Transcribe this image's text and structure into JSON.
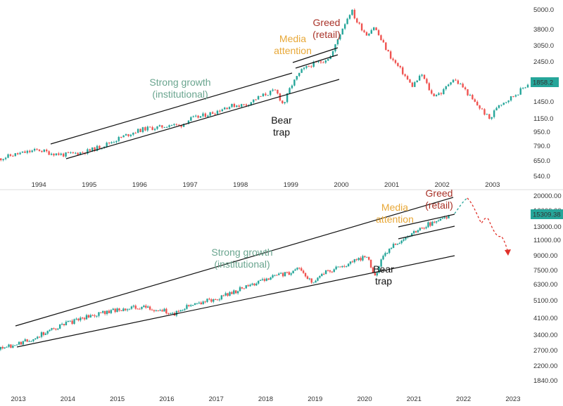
{
  "colors": {
    "up": "#26a69a",
    "down": "#ef5350",
    "strong_growth": "#6aa58f",
    "media": "#e8a838",
    "greed": "#a83228",
    "bear": "#111111",
    "price_tag_bg": "#26a69a",
    "forecast": "#26a69a",
    "forecast_down": "#e0312a"
  },
  "chart_data": [
    {
      "type": "candlestick",
      "x_ticks": [
        "1994",
        "1995",
        "1996",
        "1997",
        "1998",
        "1999",
        "2000",
        "2001",
        "2002",
        "2003"
      ],
      "y_ticks": [
        "5000.0",
        "3800.0",
        "3050.0",
        "2450.0",
        "1858.2",
        "1450.0",
        "1150.0",
        "950.0",
        "790.0",
        "650.0",
        "540.0"
      ],
      "scale": "log",
      "ylim": [
        540,
        5000
      ],
      "last_price": "1858.2",
      "annotations": {
        "strong_growth": [
          "Strong growth",
          "(institutional)"
        ],
        "media": [
          "Media",
          "attention"
        ],
        "greed": [
          "Greed",
          "(retail)"
        ],
        "bear": [
          "Bear",
          "trap"
        ]
      },
      "series": [
        {
          "x": [
            1993.2,
            1993.5,
            1993.8,
            1994.0,
            1994.2,
            1994.5,
            1994.8,
            1995.0,
            1995.3,
            1995.6,
            1995.9,
            1996.1,
            1996.4,
            1996.6,
            1996.8,
            1997.0,
            1997.2,
            1997.5,
            1997.7,
            1997.9,
            1998.1,
            1998.3,
            1998.5,
            1998.7,
            1998.85,
            1999.0,
            1999.2,
            1999.4,
            1999.6,
            1999.8,
            2000.0,
            2000.2,
            2000.3,
            2000.5,
            2000.65,
            2000.8,
            2001.0,
            2001.2,
            2001.4,
            2001.6,
            2001.8,
            2002.0,
            2002.2,
            2002.4,
            2002.6,
            2002.8,
            2002.95,
            2003.1,
            2003.3,
            2003.5,
            2003.7
          ],
          "y": [
            680,
            720,
            750,
            770,
            740,
            720,
            740,
            760,
            820,
            900,
            980,
            1020,
            1040,
            1080,
            1060,
            1160,
            1200,
            1280,
            1360,
            1400,
            1400,
            1520,
            1620,
            1700,
            1400,
            1800,
            2200,
            2400,
            2500,
            2700,
            3800,
            5000,
            4300,
            3600,
            4000,
            3300,
            2600,
            2200,
            1800,
            2100,
            1600,
            1650,
            2000,
            1800,
            1500,
            1300,
            1150,
            1400,
            1500,
            1650,
            1858
          ]
        }
      ]
    },
    {
      "type": "candlestick",
      "x_ticks": [
        "2013",
        "2014",
        "2015",
        "2016",
        "2017",
        "2018",
        "2019",
        "2020",
        "2021",
        "2022",
        "2023"
      ],
      "y_ticks": [
        "20000.00",
        "16000.00",
        "13000.00",
        "11000.00",
        "9000.00",
        "7500.00",
        "6300.00",
        "5100.00",
        "4100.00",
        "3400.00",
        "2700.00",
        "2200.00",
        "1840.00"
      ],
      "scale": "log",
      "ylim": [
        1840,
        20000
      ],
      "last_price": "15309.38",
      "annotations": {
        "strong_growth": [
          "Strong growth",
          "(institutional)"
        ],
        "media": [
          "Media",
          "attention"
        ],
        "greed": [
          "Greed",
          "(retail)"
        ],
        "bear": [
          "Bear",
          "trap"
        ]
      },
      "series": [
        {
          "x": [
            2012.6,
            2012.9,
            2013.2,
            2013.5,
            2013.8,
            2014.1,
            2014.4,
            2014.7,
            2015.0,
            2015.3,
            2015.6,
            2015.9,
            2016.1,
            2016.4,
            2016.7,
            2017.0,
            2017.3,
            2017.6,
            2017.9,
            2018.1,
            2018.4,
            2018.7,
            2018.95,
            2019.2,
            2019.5,
            2019.8,
            2020.05,
            2020.2,
            2020.35,
            2020.6,
            2020.9,
            2021.1,
            2021.4,
            2021.7
          ],
          "y": [
            2750,
            2900,
            3100,
            3400,
            3700,
            3950,
            4200,
            4400,
            4600,
            4750,
            4700,
            4600,
            4300,
            4800,
            5100,
            5300,
            5700,
            6200,
            6700,
            7000,
            7300,
            7800,
            6400,
            7500,
            7900,
            8600,
            9300,
            7000,
            8900,
            10800,
            12000,
            13100,
            14300,
            15309
          ]
        }
      ]
    }
  ]
}
